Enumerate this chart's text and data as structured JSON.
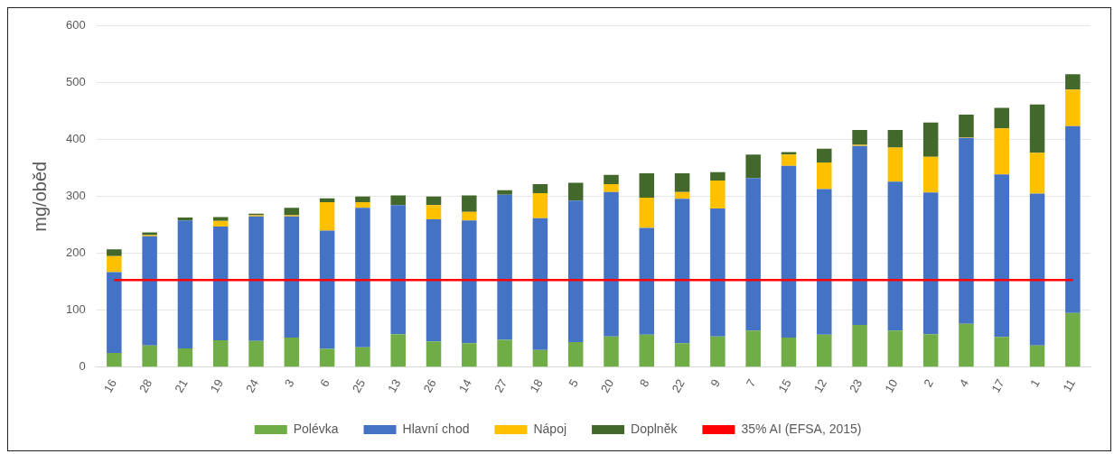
{
  "chart_data": {
    "type": "bar",
    "stacked": true,
    "ylabel": "mg/oběd",
    "categories": [
      "16",
      "28",
      "21",
      "19",
      "24",
      "3",
      "6",
      "25",
      "13",
      "26",
      "14",
      "27",
      "18",
      "5",
      "20",
      "8",
      "22",
      "9",
      "7",
      "15",
      "12",
      "23",
      "10",
      "2",
      "4",
      "17",
      "1",
      "11"
    ],
    "series": [
      {
        "name": "Polévka",
        "color": "#70ad47",
        "values": [
          25,
          38,
          33,
          47,
          46,
          52,
          32,
          35,
          58,
          45,
          42,
          48,
          30,
          44,
          54,
          57,
          42,
          54,
          64,
          52,
          57,
          74,
          64,
          58,
          76,
          53,
          38,
          95
        ]
      },
      {
        "name": "Hlavní chod",
        "color": "#4472c4",
        "values": [
          142,
          192,
          225,
          200,
          219,
          213,
          208,
          245,
          227,
          215,
          216,
          255,
          232,
          249,
          254,
          188,
          254,
          225,
          268,
          302,
          256,
          315,
          262,
          249,
          327,
          286,
          267,
          329
        ]
      },
      {
        "name": "Nápoj",
        "color": "#ffc000",
        "values": [
          28,
          2,
          0,
          10,
          2,
          2,
          50,
          10,
          0,
          25,
          15,
          0,
          44,
          0,
          14,
          53,
          12,
          49,
          0,
          20,
          47,
          2,
          60,
          63,
          1,
          81,
          72,
          64
        ]
      },
      {
        "name": "Doplněk",
        "color": "#43682b",
        "values": [
          12,
          5,
          5,
          7,
          3,
          13,
          7,
          10,
          17,
          15,
          29,
          8,
          16,
          31,
          16,
          43,
          33,
          15,
          42,
          4,
          24,
          26,
          31,
          60,
          40,
          36,
          85,
          27
        ]
      }
    ],
    "ref_lines": [
      {
        "axis": "y",
        "value": 153,
        "label": "35% AI (EFSA, 2015)",
        "color": "#ff0000"
      }
    ],
    "ylim": [
      0,
      600
    ],
    "yticks": [
      0,
      100,
      200,
      300,
      400,
      500,
      600
    ],
    "grid": "y",
    "legend": "bottom"
  }
}
